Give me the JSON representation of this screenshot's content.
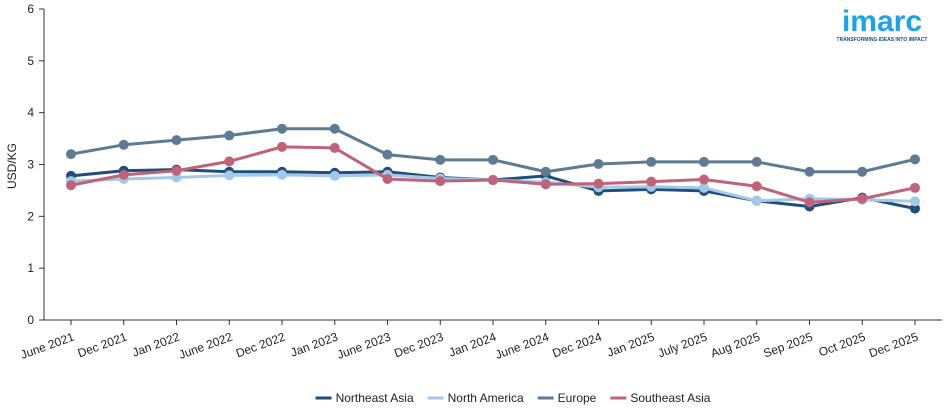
{
  "brand": {
    "name": "imarc",
    "tagline": "TRANSFORMING IDEAS INTO IMPACT",
    "color": "#1aa3e8"
  },
  "chart_data": {
    "type": "line",
    "ylabel": "USD/KG",
    "xlabel": "",
    "ylim": [
      0,
      6
    ],
    "yticks": [
      0,
      1,
      2,
      3,
      4,
      5,
      6
    ],
    "grid": false,
    "legend_position": "bottom-center",
    "categories": [
      "June 2021",
      "Dec 2021",
      "Jan 2022",
      "June 2022",
      "Dec 2022",
      "Jan 2023",
      "June 2023",
      "Dec 2023",
      "Jan 2024",
      "June 2024",
      "Dec 2024",
      "Jan 2025",
      "July 2025",
      "Aug 2025",
      "Sep 2025",
      "Oct 2025",
      "Dec 2025"
    ],
    "series": [
      {
        "name": "Northeast Asia",
        "color": "#1f4e79",
        "values": [
          2.78,
          2.88,
          2.9,
          2.86,
          2.86,
          2.84,
          2.86,
          2.75,
          2.7,
          2.78,
          2.49,
          2.52,
          2.49,
          2.3,
          2.19,
          2.36,
          2.15
        ]
      },
      {
        "name": "North America",
        "color": "#a4c8ea",
        "values": [
          2.68,
          2.72,
          2.75,
          2.79,
          2.8,
          2.78,
          2.8,
          2.73,
          2.7,
          2.66,
          2.56,
          2.57,
          2.55,
          2.3,
          2.34,
          2.32,
          2.29
        ]
      },
      {
        "name": "Europe",
        "color": "#5e7b93",
        "values": [
          3.2,
          3.38,
          3.47,
          3.56,
          3.69,
          3.69,
          3.19,
          3.09,
          3.09,
          2.86,
          3.01,
          3.05,
          3.05,
          3.05,
          2.86,
          2.86,
          3.1
        ]
      },
      {
        "name": "Southeast Asia",
        "color": "#c06278",
        "values": [
          2.6,
          2.8,
          2.88,
          3.06,
          3.34,
          3.32,
          2.72,
          2.68,
          2.7,
          2.62,
          2.63,
          2.67,
          2.71,
          2.58,
          2.27,
          2.34,
          2.55
        ]
      }
    ]
  }
}
